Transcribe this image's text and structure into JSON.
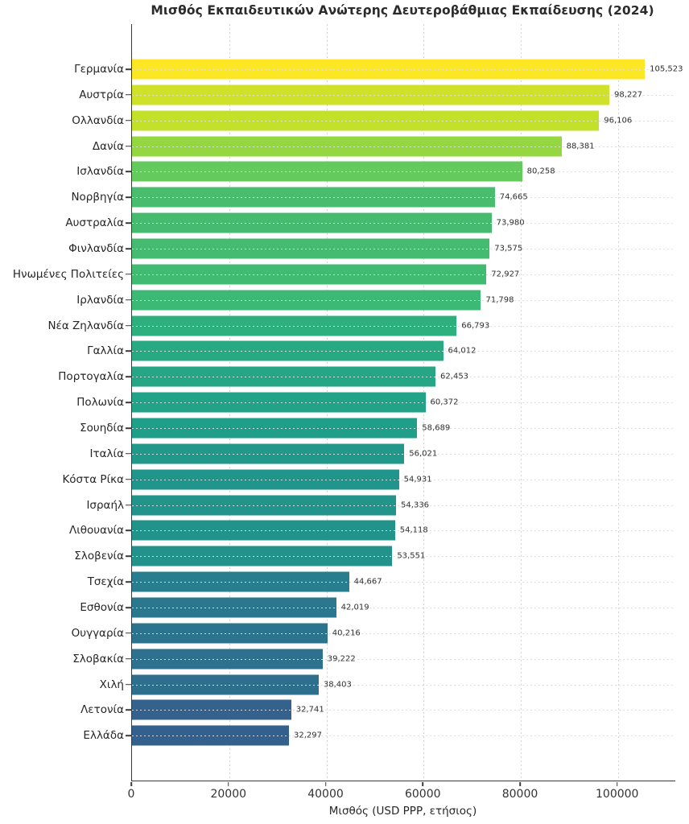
{
  "chart_data": {
    "type": "bar",
    "orientation": "horizontal",
    "title": "Μισθός Εκπαιδευτικών Ανώτερης Δευτεροβάθμιας Εκπαίδευσης (2024)",
    "xlabel": "Μισθός (USD PPP, ετήσιος)",
    "xlim": [
      0,
      111800
    ],
    "xticks": [
      0,
      20000,
      40000,
      60000,
      80000,
      100000
    ],
    "xtick_labels": [
      "0",
      "20000",
      "40000",
      "60000",
      "80000",
      "100000"
    ],
    "grid": "dotted gridlines on both axes",
    "legend": "none",
    "colormap": "viridis (color scaled to value/max)",
    "categories": [
      "Γερμανία",
      "Αυστρία",
      "Ολλανδία",
      "Δανία",
      "Ισλανδία",
      "Νορβηγία",
      "Αυστραλία",
      "Φινλανδία",
      "Ηνωμένες Πολιτείες",
      "Ιρλανδία",
      "Νέα Ζηλανδία",
      "Γαλλία",
      "Πορτογαλία",
      "Πολωνία",
      "Σουηδία",
      "Ιταλία",
      "Κόστα Ρίκα",
      "Ισραήλ",
      "Λιθουανία",
      "Σλοβενία",
      "Τσεχία",
      "Εσθονία",
      "Ουγγαρία",
      "Σλοβακία",
      "Χιλή",
      "Λετονία",
      "Ελλάδα"
    ],
    "values": [
      105523,
      98227,
      96106,
      88381,
      80258,
      74665,
      73980,
      73575,
      72927,
      71798,
      66793,
      64012,
      62453,
      60372,
      58689,
      56021,
      54931,
      54336,
      54118,
      53551,
      44667,
      42019,
      40216,
      39222,
      38403,
      32741,
      32297
    ],
    "value_labels": [
      "105,523",
      "98,227",
      "96,106",
      "88,381",
      "80,258",
      "74,665",
      "73,980",
      "73,575",
      "72,927",
      "71,798",
      "66,793",
      "64,012",
      "62,453",
      "60,372",
      "58,689",
      "56,021",
      "54,931",
      "54,336",
      "54,118",
      "53,551",
      "44,667",
      "42,019",
      "40,216",
      "39,222",
      "38,403",
      "32,741",
      "32,297"
    ],
    "bar_colors": [
      "#fde725",
      "#d0e129",
      "#c3e02a",
      "#94d740",
      "#65ca5d",
      "#4abc6d",
      "#46bb6f",
      "#44bb70",
      "#41ba72",
      "#3cb975",
      "#2eaf7e",
      "#29a982",
      "#26a684",
      "#22a287",
      "#1f9e89",
      "#21988a",
      "#21958b",
      "#22948b",
      "#22938b",
      "#22928b",
      "#287d8e",
      "#2b778e",
      "#2c738e",
      "#2d718e",
      "#2e6f8e",
      "#34628d",
      "#34608d"
    ]
  },
  "colors": {
    "background": "#ffffff",
    "title_text": "#2b2b2b",
    "axis_text": "#262626",
    "value_label_text": "#303030",
    "spine": "#3a3a3a",
    "grid": "#d4d4d4"
  }
}
